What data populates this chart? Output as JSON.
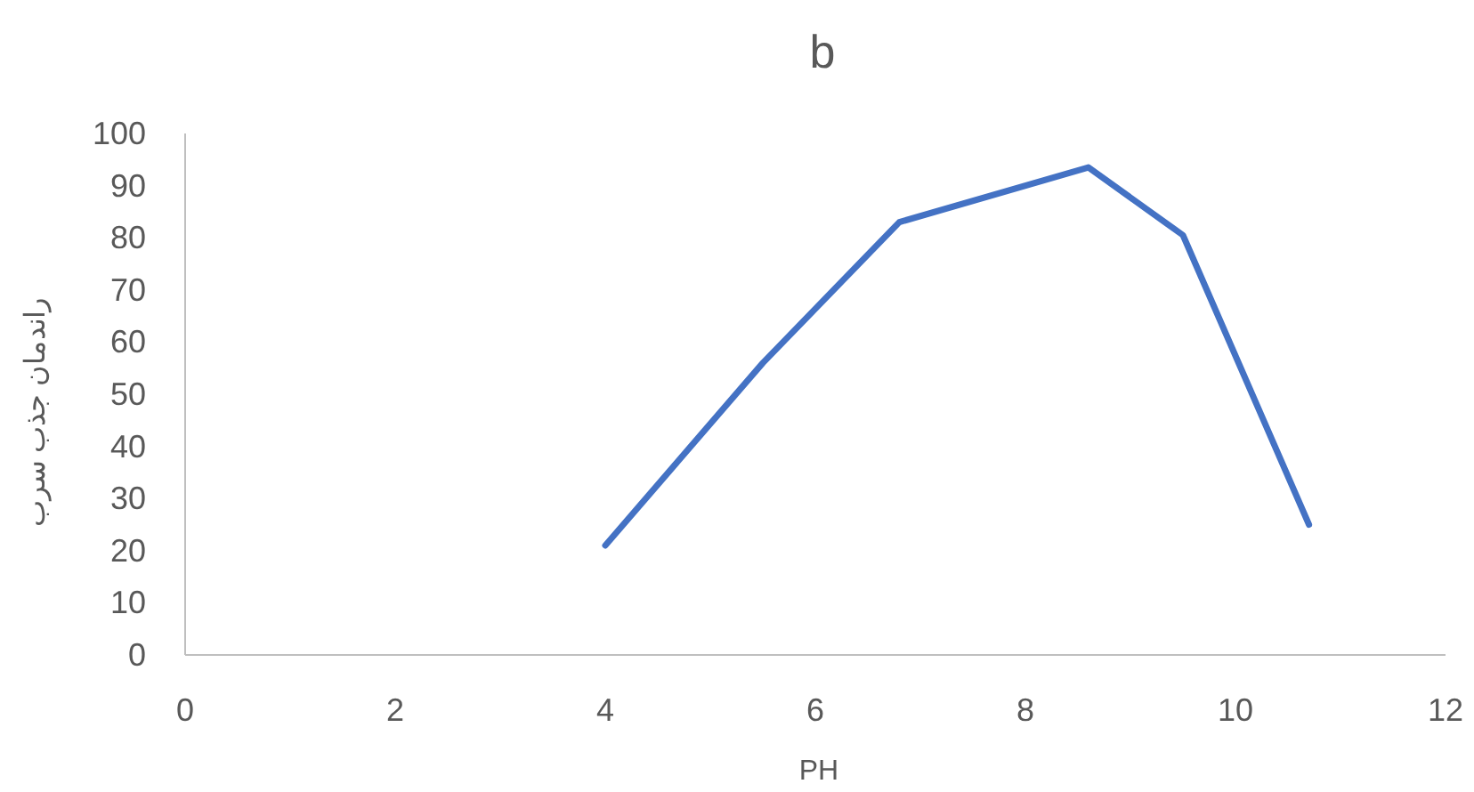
{
  "chart_data": {
    "type": "line",
    "title": "b",
    "xlabel": "PH",
    "ylabel": "راندمان جذب سرب",
    "x": [
      4,
      5.5,
      6.8,
      8.6,
      9.5,
      10.7
    ],
    "series": [
      {
        "color": "#4472c4",
        "values": [
          21,
          56,
          83,
          93.5,
          80.5,
          25
        ]
      }
    ],
    "xlim": [
      0,
      12
    ],
    "xticks": [
      0,
      2,
      4,
      6,
      8,
      10,
      12
    ],
    "ylim": [
      0,
      100
    ],
    "yticks": [
      0,
      10,
      20,
      30,
      40,
      50,
      60,
      70,
      80,
      90,
      100
    ],
    "grid": false,
    "marker": "none",
    "line_style": "solid"
  }
}
